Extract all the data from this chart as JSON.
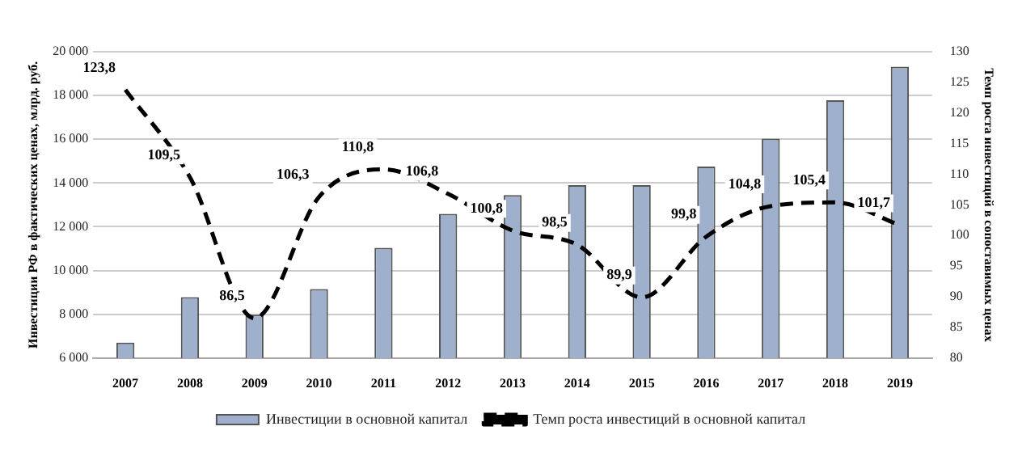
{
  "chart_data": {
    "type": "bar",
    "categories": [
      "2007",
      "2008",
      "2009",
      "2010",
      "2011",
      "2012",
      "2013",
      "2014",
      "2015",
      "2016",
      "2017",
      "2018",
      "2019"
    ],
    "series": [
      {
        "name": "Инвестиции в основной капитал",
        "color": "#9fb0cc",
        "values": [
          6700,
          8780,
          7980,
          9150,
          11040,
          12590,
          13450,
          13900,
          13900,
          14750,
          16030,
          17780,
          19320
        ]
      },
      {
        "name": "Темп роста инвестиций в основной капитал",
        "type": "line",
        "axis": "y2",
        "color": "#000000",
        "line_style": "dashed",
        "marker": "none",
        "values": [
          123.8,
          109.5,
          86.5,
          106.3,
          110.8,
          106.8,
          100.8,
          98.5,
          89.9,
          99.8,
          104.8,
          105.4,
          101.7
        ],
        "value_labels": [
          "123,8",
          "109,5",
          "86,5",
          "106,3",
          "110,8",
          "106,8",
          "100,8",
          "98,5",
          "89,9",
          "99,8",
          "104,8",
          "105,4",
          "101,7"
        ]
      }
    ],
    "ylabel": "Инвестиции РФ в фактических ценах, млрд. руб.",
    "y2label": "Темп роста инвестиций в сопоставимых ценах",
    "ylim": [
      6000,
      20000
    ],
    "yticks": [
      {
        "value": 6000,
        "label": "6 000"
      },
      {
        "value": 8000,
        "label": "8 000"
      },
      {
        "value": 10000,
        "label": "10 000"
      },
      {
        "value": 12000,
        "label": "12 000"
      },
      {
        "value": 14000,
        "label": "14 000"
      },
      {
        "value": 16000,
        "label": "16 000"
      },
      {
        "value": 18000,
        "label": "18 000"
      },
      {
        "value": 20000,
        "label": "20 000"
      }
    ],
    "y2lim": [
      80,
      130
    ],
    "y2ticks": [
      80,
      85,
      90,
      95,
      100,
      105,
      110,
      115,
      120,
      125,
      130
    ],
    "grid": "y",
    "legend": "bottom"
  }
}
